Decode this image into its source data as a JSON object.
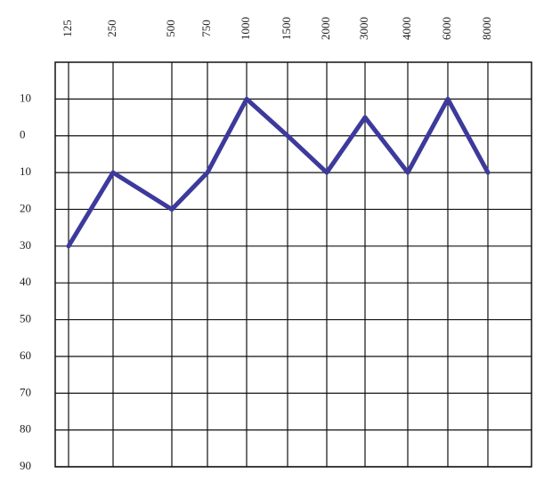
{
  "chart_data": {
    "type": "line",
    "categories": [
      "125",
      "250",
      "500",
      "750",
      "1000",
      "1500",
      "2000",
      "3000",
      "4000",
      "6000",
      "8000"
    ],
    "series": [
      {
        "name": null,
        "color": "#3d3a9c",
        "values": [
          30,
          10,
          20,
          10,
          -10,
          0,
          10,
          -5,
          10,
          -10,
          10
        ]
      }
    ],
    "ylim": [
      -20,
      90
    ],
    "y_inverted": true,
    "yticks": [
      {
        "value": -10,
        "label": "10"
      },
      0,
      10,
      20,
      30,
      40,
      50,
      60,
      70,
      80,
      90
    ],
    "grid": true
  }
}
